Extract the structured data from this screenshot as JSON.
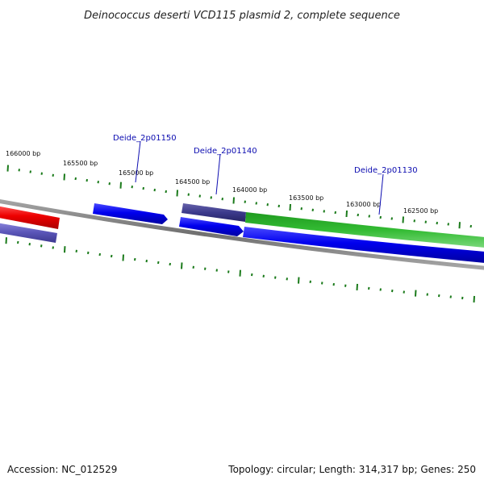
{
  "title": "Deinococcus deserti VCD115 plasmid 2, complete sequence",
  "footer": {
    "accession": "Accession: NC_012529",
    "summary": "Topology: circular; Length: 314,317 bp; Genes: 250"
  },
  "ticks": {
    "labels": [
      "166000 bp",
      "165500 bp",
      "165000 bp",
      "164500 bp",
      "164000 bp",
      "163500 bp",
      "163000 bp",
      "162500 bp"
    ],
    "tick_color": "#1a7a1a"
  },
  "genes": {
    "labels": [
      "Deide_2p01150",
      "Deide_2p01140",
      "Deide_2p01130"
    ],
    "label_color": "#0b0bb0"
  },
  "colors": {
    "backbone": "#808080",
    "red_feature": "#ee0000",
    "blue_feature": "#0000ee",
    "purple_feature": "#5a55b8",
    "dark_purple_feature": "#3c3a8c",
    "green_feature": "#33bb33"
  }
}
